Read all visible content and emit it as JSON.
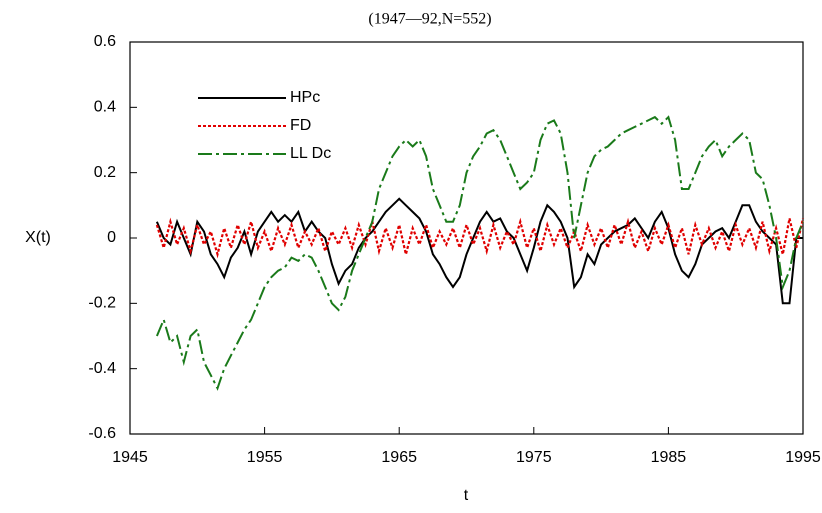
{
  "chart_data": {
    "type": "line",
    "title": "(1947—92,N=552)",
    "ylabel": "X(t)",
    "xlabel": "t",
    "legend": "upper-left",
    "grid": false,
    "xlim": [
      1945,
      1995
    ],
    "xticks": [
      1945,
      1955,
      1965,
      1975,
      1985,
      1995
    ],
    "ylim": [
      -0.6,
      0.6
    ],
    "yticks": [
      -0.6,
      -0.4,
      -0.2,
      0,
      0.2,
      0.4,
      0.6
    ],
    "x": [
      1947,
      1947.5,
      1948,
      1948.5,
      1949,
      1949.5,
      1950,
      1950.5,
      1951,
      1951.5,
      1952,
      1952.5,
      1953,
      1953.5,
      1954,
      1954.5,
      1955,
      1955.5,
      1956,
      1956.5,
      1957,
      1957.5,
      1958,
      1958.5,
      1959,
      1959.5,
      1960,
      1960.5,
      1961,
      1961.5,
      1962,
      1962.5,
      1963,
      1963.5,
      1964,
      1964.5,
      1965,
      1965.5,
      1966,
      1966.5,
      1967,
      1967.5,
      1968,
      1968.5,
      1969,
      1969.5,
      1970,
      1970.5,
      1971,
      1971.5,
      1972,
      1972.5,
      1973,
      1973.5,
      1974,
      1974.5,
      1975,
      1975.5,
      1976,
      1976.5,
      1977,
      1977.5,
      1978,
      1978.5,
      1979,
      1979.5,
      1980,
      1980.5,
      1981,
      1981.5,
      1982,
      1982.5,
      1983,
      1983.5,
      1984,
      1984.5,
      1985,
      1985.5,
      1986,
      1986.5,
      1987,
      1987.5,
      1988,
      1988.5,
      1989,
      1989.5,
      1990,
      1990.5,
      1991,
      1991.5,
      1992,
      1992.5,
      1993,
      1993.5,
      1994,
      1994.5,
      1995
    ],
    "series": [
      {
        "name": "HPc",
        "color": "#000000",
        "dash": "solid",
        "values": [
          0.05,
          0.0,
          -0.02,
          0.05,
          0.0,
          -0.05,
          0.05,
          0.02,
          -0.05,
          -0.08,
          -0.12,
          -0.06,
          -0.03,
          0.02,
          -0.05,
          0.02,
          0.05,
          0.08,
          0.05,
          0.07,
          0.05,
          0.08,
          0.02,
          0.05,
          0.02,
          0.0,
          -0.08,
          -0.14,
          -0.1,
          -0.08,
          -0.03,
          0.0,
          0.02,
          0.05,
          0.08,
          0.1,
          0.12,
          0.1,
          0.08,
          0.06,
          0.02,
          -0.05,
          -0.08,
          -0.12,
          -0.15,
          -0.12,
          -0.05,
          0.0,
          0.05,
          0.08,
          0.05,
          0.06,
          0.02,
          0.0,
          -0.05,
          -0.1,
          -0.03,
          0.05,
          0.1,
          0.08,
          0.05,
          0.0,
          -0.15,
          -0.12,
          -0.05,
          -0.08,
          -0.02,
          0.0,
          0.02,
          0.03,
          0.04,
          0.06,
          0.03,
          0.0,
          0.05,
          0.08,
          0.03,
          -0.05,
          -0.1,
          -0.12,
          -0.08,
          -0.02,
          0.0,
          0.02,
          0.03,
          0.0,
          0.05,
          0.1,
          0.1,
          0.05,
          0.02,
          0.0,
          -0.02,
          -0.2,
          -0.2,
          0.0,
          0.0
        ]
      },
      {
        "name": "FD",
        "color": "#e00000",
        "dash": "dotted",
        "values": [
          0.04,
          -0.03,
          0.05,
          -0.02,
          0.03,
          -0.04,
          0.04,
          -0.02,
          0.02,
          -0.05,
          0.03,
          -0.03,
          0.04,
          -0.02,
          0.05,
          -0.03,
          0.02,
          -0.04,
          0.03,
          -0.02,
          0.04,
          -0.03,
          0.02,
          -0.02,
          0.03,
          -0.04,
          0.02,
          -0.02,
          0.03,
          -0.03,
          0.04,
          -0.02,
          0.05,
          -0.04,
          0.03,
          -0.03,
          0.04,
          -0.05,
          0.03,
          -0.02,
          0.04,
          -0.03,
          0.02,
          -0.02,
          0.03,
          -0.03,
          0.04,
          -0.02,
          0.03,
          -0.04,
          0.04,
          -0.03,
          0.02,
          -0.02,
          0.05,
          -0.03,
          0.03,
          -0.04,
          0.04,
          -0.02,
          0.03,
          -0.03,
          0.02,
          -0.04,
          0.04,
          -0.02,
          0.03,
          -0.03,
          0.04,
          -0.02,
          0.05,
          -0.03,
          0.02,
          -0.04,
          0.03,
          -0.02,
          0.04,
          -0.03,
          0.03,
          -0.05,
          0.04,
          -0.02,
          0.03,
          -0.03,
          0.02,
          -0.04,
          0.04,
          -0.02,
          0.03,
          -0.03,
          0.05,
          -0.04,
          0.03,
          -0.05,
          0.06,
          -0.03,
          0.06
        ]
      },
      {
        "name": "LL Dc",
        "color": "#1a7a1a",
        "dash": "dashdot",
        "values": [
          -0.3,
          -0.25,
          -0.32,
          -0.3,
          -0.38,
          -0.3,
          -0.28,
          -0.38,
          -0.42,
          -0.46,
          -0.4,
          -0.36,
          -0.32,
          -0.28,
          -0.25,
          -0.2,
          -0.15,
          -0.12,
          -0.1,
          -0.09,
          -0.06,
          -0.07,
          -0.05,
          -0.06,
          -0.1,
          -0.15,
          -0.2,
          -0.22,
          -0.18,
          -0.1,
          -0.05,
          0.0,
          0.05,
          0.15,
          0.2,
          0.25,
          0.28,
          0.3,
          0.28,
          0.3,
          0.25,
          0.15,
          0.1,
          0.05,
          0.05,
          0.1,
          0.2,
          0.25,
          0.28,
          0.32,
          0.33,
          0.3,
          0.25,
          0.2,
          0.15,
          0.17,
          0.2,
          0.3,
          0.35,
          0.36,
          0.32,
          0.2,
          0.0,
          0.1,
          0.2,
          0.25,
          0.27,
          0.28,
          0.3,
          0.32,
          0.33,
          0.34,
          0.35,
          0.36,
          0.37,
          0.35,
          0.37,
          0.3,
          0.15,
          0.15,
          0.2,
          0.25,
          0.28,
          0.3,
          0.25,
          0.28,
          0.3,
          0.32,
          0.3,
          0.2,
          0.18,
          0.1,
          0.0,
          -0.15,
          -0.1,
          0.0,
          0.05
        ]
      }
    ]
  }
}
